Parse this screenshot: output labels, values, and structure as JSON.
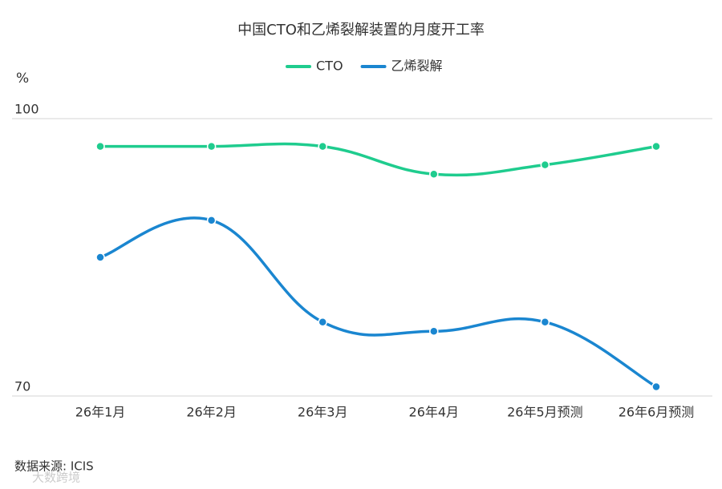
{
  "chart_data": {
    "type": "line",
    "title": "中国CTO和乙烯裂解装置的月度开工率",
    "y_label": "%",
    "categories": [
      "26年1月",
      "26年2月",
      "26年3月",
      "26年4月",
      "26年5月预测",
      "26年6月预测"
    ],
    "series": [
      {
        "name": "CTO",
        "color": "#1fcc8e",
        "values": [
          97,
          97,
          97,
          94,
          95,
          97
        ]
      },
      {
        "name": "乙烯裂解",
        "color": "#1a86d0",
        "values": [
          85,
          89,
          78,
          77,
          78,
          71
        ]
      }
    ],
    "ylim": [
      70,
      100
    ],
    "yticks": [
      70,
      100
    ],
    "grid": true,
    "legend": "top",
    "source": "数据来源: ICIS",
    "watermark": "大数跨境"
  }
}
